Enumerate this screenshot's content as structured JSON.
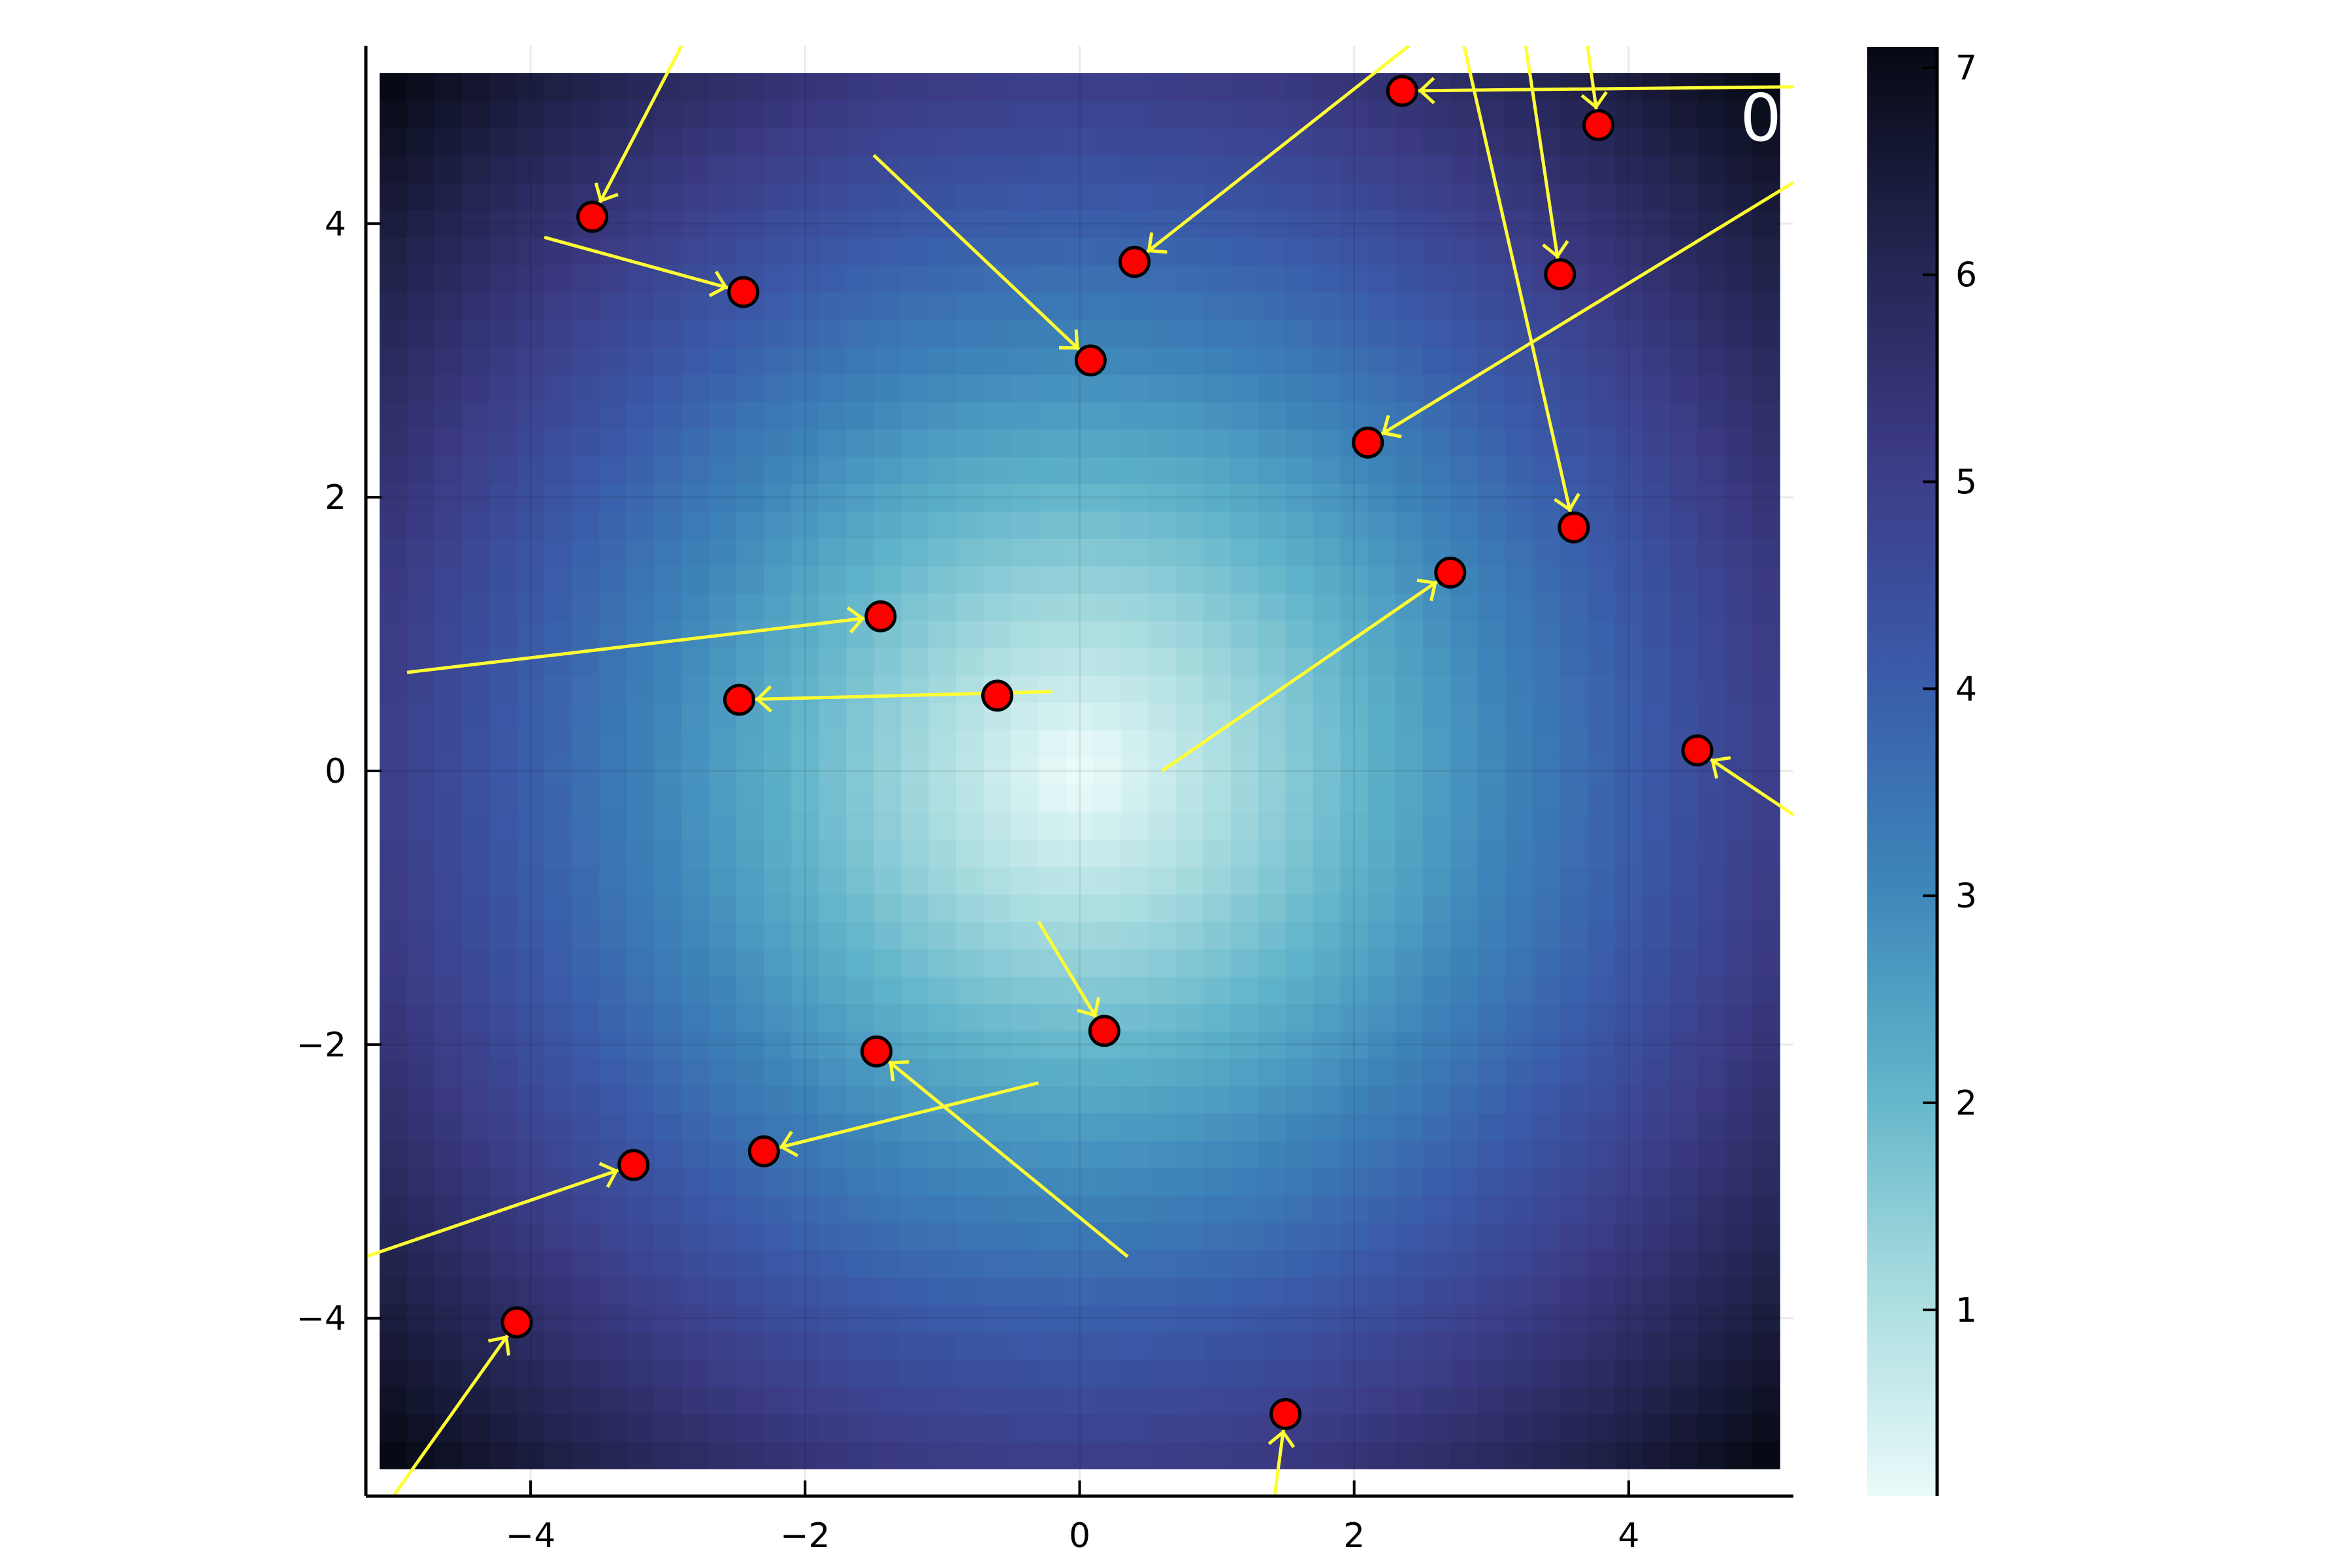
{
  "chart_data": {
    "type": "scatter",
    "title": "",
    "xlabel": "",
    "ylabel": "",
    "annotation": "0",
    "xlim": [
      -5.2,
      5.2
    ],
    "ylim": [
      -5.3,
      5.3
    ],
    "xticks": [
      -4,
      -2,
      0,
      2,
      4
    ],
    "yticks": [
      -4,
      -2,
      0,
      2,
      4
    ],
    "xtick_labels": [
      "−4",
      "−2",
      "0",
      "2",
      "4"
    ],
    "ytick_labels": [
      "−4",
      "−2",
      "0",
      "2",
      "4"
    ],
    "grid": true,
    "heatmap": {
      "function": "distance from origin",
      "xrange": [
        -5.1,
        5.1
      ],
      "yrange": [
        -5.1,
        5.1
      ],
      "colormap": [
        "#eafafa",
        "#a8dcdf",
        "#5fb3c9",
        "#3c84b9",
        "#3a5aa8",
        "#3c3b86",
        "#232551",
        "#060913"
      ]
    },
    "colorbar": {
      "min": 0.1,
      "max": 7.1,
      "ticks": [
        1,
        2,
        3,
        4,
        5,
        6,
        7
      ],
      "tick_labels": [
        "1",
        "2",
        "3",
        "4",
        "5",
        "6",
        "7"
      ]
    },
    "marker_color": "#ff0000",
    "arrow_color": "#ffff33",
    "points": [
      {
        "x": -3.55,
        "y": 4.05,
        "from": [
          -2.9,
          5.3
        ]
      },
      {
        "x": -2.45,
        "y": 3.5,
        "from": [
          -3.9,
          3.9
        ]
      },
      {
        "x": 0.08,
        "y": 3.0,
        "from": [
          -1.5,
          4.5
        ]
      },
      {
        "x": 0.4,
        "y": 3.72,
        "from": [
          2.4,
          5.3
        ]
      },
      {
        "x": 2.35,
        "y": 4.97,
        "from": [
          5.2,
          5.0
        ]
      },
      {
        "x": 3.78,
        "y": 4.72,
        "from": [
          3.7,
          5.3
        ]
      },
      {
        "x": 3.5,
        "y": 3.63,
        "from": [
          3.25,
          5.3
        ]
      },
      {
        "x": 2.1,
        "y": 2.4,
        "from": [
          5.2,
          4.3
        ]
      },
      {
        "x": 3.6,
        "y": 1.78,
        "from": [
          2.8,
          5.3
        ]
      },
      {
        "x": 2.7,
        "y": 1.45,
        "from": [
          0.6,
          0.0
        ]
      },
      {
        "x": -1.45,
        "y": 1.13,
        "from": [
          -4.9,
          0.72
        ]
      },
      {
        "x": -2.48,
        "y": 0.52,
        "from": [
          -0.2,
          0.58
        ]
      },
      {
        "x": -0.6,
        "y": 0.55,
        "from": null
      },
      {
        "x": 4.5,
        "y": 0.15,
        "from": [
          5.2,
          -0.32
        ]
      },
      {
        "x": 0.18,
        "y": -1.9,
        "from": [
          -0.3,
          -1.1
        ]
      },
      {
        "x": -1.48,
        "y": -2.05,
        "from": [
          0.35,
          -3.55
        ]
      },
      {
        "x": -2.3,
        "y": -2.78,
        "from": [
          -0.3,
          -2.28
        ]
      },
      {
        "x": -3.25,
        "y": -2.88,
        "from": [
          -5.2,
          -3.55
        ]
      },
      {
        "x": -4.1,
        "y": -4.03,
        "from": [
          -5.0,
          -5.3
        ]
      },
      {
        "x": 1.5,
        "y": -4.7,
        "from": [
          1.42,
          -5.3
        ]
      }
    ]
  }
}
